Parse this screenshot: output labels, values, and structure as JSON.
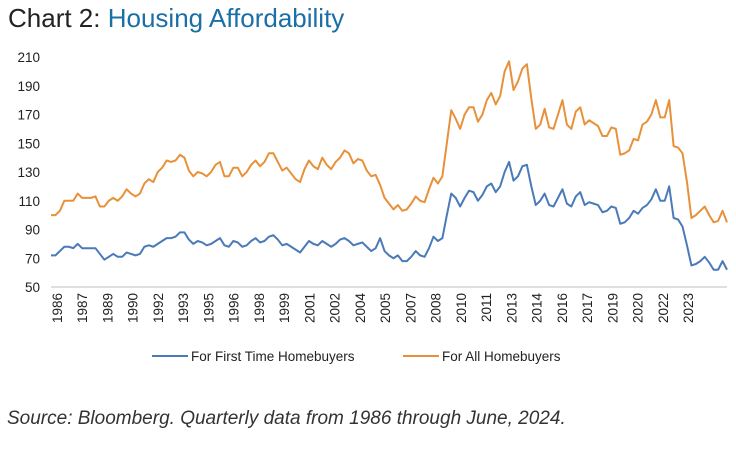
{
  "header": {
    "prefix": "Chart 2:",
    "title": "Housing Affordability"
  },
  "source": "Source: Bloomberg. Quarterly data from 1986 through June, 2024.",
  "colors": {
    "first_time": "#4a7ab8",
    "all": "#e8913a",
    "title_accent": "#1a6fa6"
  },
  "chart_data": {
    "type": "line",
    "title": "Housing Affordability",
    "xlabel": "",
    "ylabel": "",
    "ylim": [
      50,
      210
    ],
    "yticks": [
      50,
      70,
      90,
      110,
      130,
      150,
      170,
      190,
      210
    ],
    "xtick_labels": [
      "1986",
      "1987",
      "1989",
      "1990",
      "1992",
      "1993",
      "1995",
      "1996",
      "1998",
      "1999",
      "2001",
      "2002",
      "2004",
      "2005",
      "2007",
      "2008",
      "2010",
      "2011",
      "2013",
      "2014",
      "2016",
      "2017",
      "2019",
      "2020",
      "2022",
      "2023"
    ],
    "grid": false,
    "legend_position": "bottom",
    "x_start": "1986 Q1",
    "frequency": "quarterly",
    "series": [
      {
        "name": "For All Homebuyers",
        "values": [
          100,
          100,
          103,
          110,
          110,
          110,
          115,
          112,
          112,
          112,
          113,
          106,
          106,
          110,
          112,
          110,
          113,
          118,
          115,
          113,
          115,
          122,
          125,
          123,
          130,
          133,
          138,
          137,
          138,
          142,
          140,
          131,
          127,
          130,
          129,
          127,
          130,
          135,
          137,
          127,
          127,
          133,
          133,
          127,
          130,
          135,
          138,
          134,
          137,
          143,
          143,
          137,
          131,
          133,
          129,
          125,
          123,
          132,
          138,
          134,
          132,
          140,
          135,
          132,
          137,
          140,
          145,
          143,
          136,
          139,
          138,
          131,
          127,
          128,
          121,
          112,
          108,
          104,
          107,
          103,
          104,
          108,
          113,
          110,
          109,
          118,
          126,
          122,
          127,
          150,
          173,
          167,
          160,
          170,
          175,
          175,
          165,
          170,
          180,
          185,
          177,
          183,
          200,
          207,
          187,
          193,
          202,
          205,
          181,
          160,
          163,
          174,
          161,
          160,
          170,
          180,
          163,
          160,
          172,
          175,
          163,
          166,
          164,
          162,
          155,
          155,
          161,
          160,
          142,
          143,
          145,
          153,
          152,
          163,
          165,
          170,
          180,
          168,
          168,
          180,
          148,
          147,
          143,
          123,
          98,
          100,
          103,
          106,
          100,
          95,
          96,
          103,
          95
        ]
      },
      {
        "name": "For First Time Homebuyers",
        "values": [
          72,
          72,
          75,
          78,
          78,
          77,
          80,
          77,
          77,
          77,
          77,
          73,
          69,
          71,
          73,
          71,
          71,
          74,
          73,
          72,
          73,
          78,
          79,
          78,
          80,
          82,
          84,
          84,
          85,
          88,
          88,
          83,
          80,
          82,
          81,
          79,
          80,
          82,
          84,
          79,
          78,
          82,
          81,
          78,
          79,
          82,
          84,
          81,
          82,
          85,
          86,
          83,
          79,
          80,
          78,
          76,
          74,
          78,
          82,
          80,
          79,
          82,
          80,
          78,
          80,
          83,
          84,
          82,
          79,
          80,
          81,
          78,
          75,
          77,
          84,
          75,
          72,
          70,
          72,
          68,
          68,
          71,
          75,
          72,
          71,
          77,
          85,
          82,
          84,
          100,
          115,
          112,
          106,
          112,
          117,
          116,
          110,
          114,
          120,
          122,
          116,
          120,
          130,
          137,
          124,
          127,
          134,
          135,
          120,
          107,
          110,
          115,
          107,
          106,
          112,
          118,
          108,
          106,
          113,
          116,
          107,
          109,
          108,
          107,
          102,
          103,
          106,
          105,
          94,
          95,
          98,
          103,
          101,
          105,
          107,
          111,
          118,
          110,
          110,
          120,
          98,
          97,
          92,
          79,
          65,
          66,
          68,
          71,
          67,
          62,
          62,
          68,
          62
        ]
      }
    ]
  }
}
